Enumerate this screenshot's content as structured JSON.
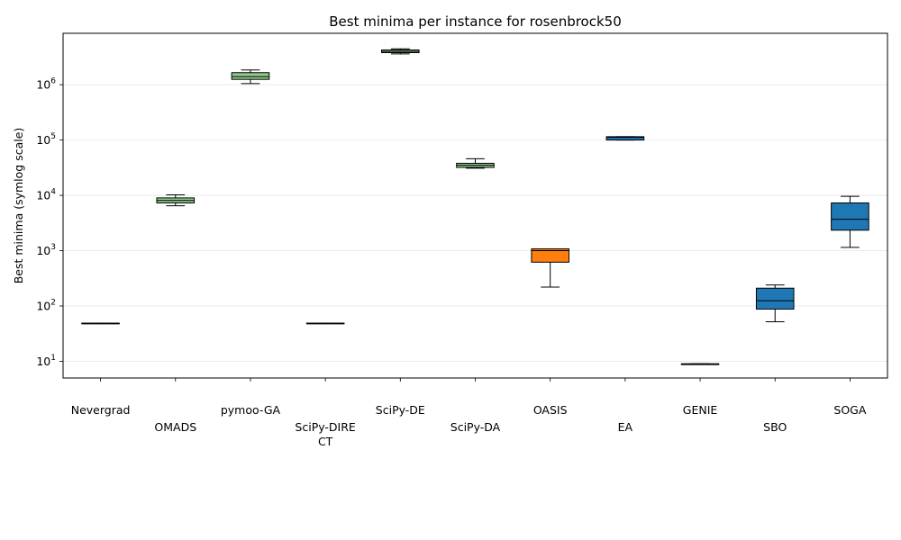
{
  "chart_data": {
    "type": "box",
    "title": "Best minima per instance for rosenbrock50",
    "ylabel": "Best minima (symlog scale)",
    "xlabel": "",
    "yscale": "symlog",
    "ylim": [
      5,
      8500000
    ],
    "yticks": [
      {
        "value": 10,
        "base": "10",
        "exp": "1"
      },
      {
        "value": 100,
        "base": "10",
        "exp": "2"
      },
      {
        "value": 1000,
        "base": "10",
        "exp": "3"
      },
      {
        "value": 10000,
        "base": "10",
        "exp": "4"
      },
      {
        "value": 100000,
        "base": "10",
        "exp": "5"
      },
      {
        "value": 1000000,
        "base": "10",
        "exp": "6"
      }
    ],
    "grid": "horizontal",
    "categories": [
      {
        "label": "Nevergrad",
        "lines": [
          "Nevergrad"
        ],
        "row": 0,
        "color": "#1f77b4",
        "stats": {
          "min": 49,
          "q1": 49,
          "median": 49,
          "q3": 49,
          "max": 49
        }
      },
      {
        "label": "OMADS",
        "lines": [
          "OMADS"
        ],
        "row": 1,
        "color": "#90cc8a",
        "stats": {
          "min": 6500,
          "q1": 7300,
          "median": 8100,
          "q3": 9000,
          "max": 10200
        }
      },
      {
        "label": "pymoo-GA",
        "lines": [
          "pymoo-GA"
        ],
        "row": 0,
        "color": "#90cc8a",
        "stats": {
          "min": 1050000,
          "q1": 1250000,
          "median": 1400000,
          "q3": 1650000,
          "max": 1850000
        }
      },
      {
        "label": "SciPy-DIRECT",
        "lines": [
          "SciPy-DIRE",
          "CT"
        ],
        "row": 1,
        "color": "#90cc8a",
        "stats": {
          "min": 49,
          "q1": 49,
          "median": 49,
          "q3": 49,
          "max": 49
        }
      },
      {
        "label": "SciPy-DE",
        "lines": [
          "SciPy-DE"
        ],
        "row": 0,
        "color": "#90cc8a",
        "stats": {
          "min": 3600000,
          "q1": 3800000,
          "median": 4000000,
          "q3": 4250000,
          "max": 4450000
        }
      },
      {
        "label": "SciPy-DA",
        "lines": [
          "SciPy-DA"
        ],
        "row": 1,
        "color": "#90cc8a",
        "stats": {
          "min": 31000,
          "q1": 32000,
          "median": 35000,
          "q3": 38000,
          "max": 46000
        }
      },
      {
        "label": "OASIS",
        "lines": [
          "OASIS"
        ],
        "row": 0,
        "color": "#ff7f0e",
        "stats": {
          "min": 220,
          "q1": 620,
          "median": 1000,
          "q3": 1080,
          "max": 1080
        }
      },
      {
        "label": "EA",
        "lines": [
          "EA"
        ],
        "row": 1,
        "color": "#1f77b4",
        "stats": {
          "min": 100000,
          "q1": 100000,
          "median": 112000,
          "q3": 115000,
          "max": 115000
        }
      },
      {
        "label": "GENIE",
        "lines": [
          "GENIE"
        ],
        "row": 0,
        "color": "#1f77b4",
        "stats": {
          "min": 9,
          "q1": 9,
          "median": 9,
          "q3": 9,
          "max": 9
        }
      },
      {
        "label": "SBO",
        "lines": [
          "SBO"
        ],
        "row": 1,
        "color": "#1f77b4",
        "stats": {
          "min": 52,
          "q1": 88,
          "median": 125,
          "q3": 210,
          "max": 240
        }
      },
      {
        "label": "SOGA",
        "lines": [
          "SOGA"
        ],
        "row": 0,
        "color": "#1f77b4",
        "stats": {
          "min": 1150,
          "q1": 2350,
          "median": 3700,
          "q3": 7300,
          "max": 9600
        }
      }
    ]
  }
}
